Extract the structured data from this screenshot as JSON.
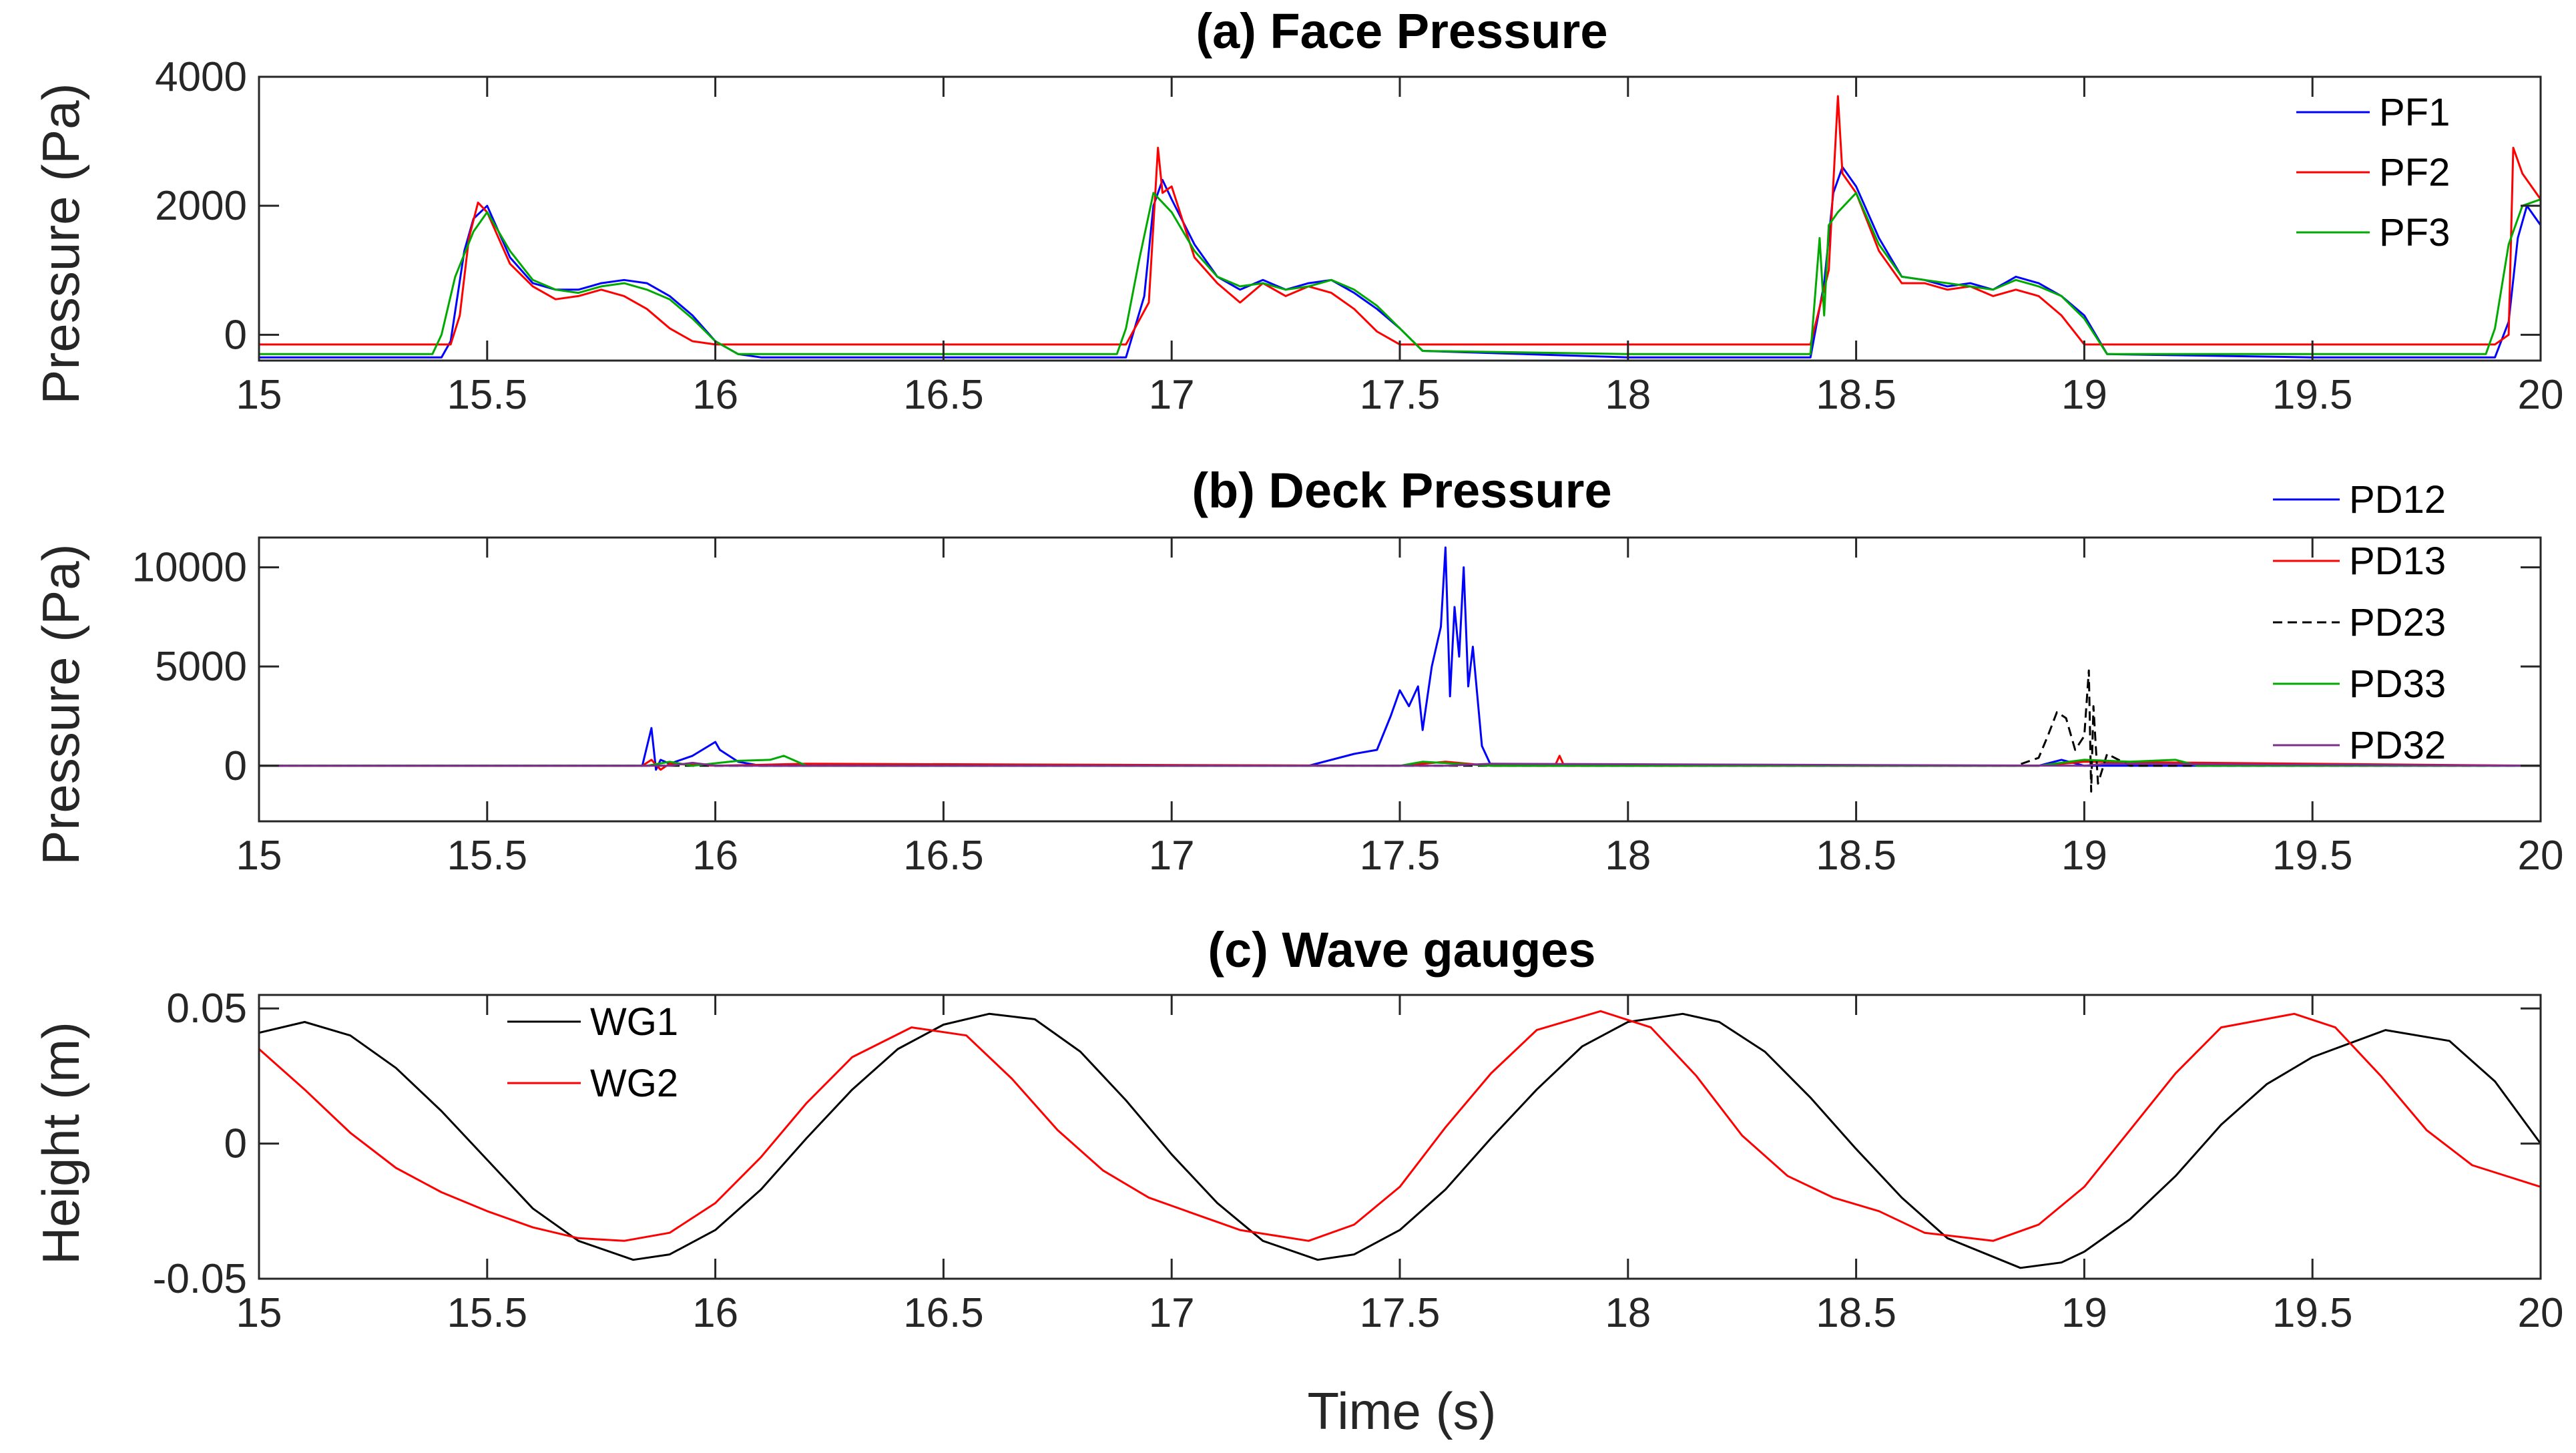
{
  "chart_data": [
    {
      "type": "line",
      "title": "(a) Face Pressure",
      "xlabel": "",
      "ylabel": "Pressure (Pa)",
      "xlim": [
        15,
        20
      ],
      "ylim": [
        -400,
        4000
      ],
      "x_ticks": [
        "15",
        "15.5",
        "16",
        "16.5",
        "17",
        "17.5",
        "18",
        "18.5",
        "19",
        "19.5",
        "20"
      ],
      "y_ticks": [
        "0",
        "2000",
        "4000"
      ],
      "legend_position": "top-right",
      "series": [
        {
          "name": "PF1",
          "color": "#0000ff",
          "dash": "",
          "x": [
            15,
            15.4,
            15.42,
            15.45,
            15.47,
            15.5,
            15.55,
            15.6,
            15.65,
            15.7,
            15.75,
            15.8,
            15.85,
            15.9,
            15.95,
            16.0,
            16.05,
            16.1,
            16.5,
            16.9,
            16.94,
            16.96,
            16.98,
            17.0,
            17.05,
            17.1,
            17.15,
            17.2,
            17.25,
            17.3,
            17.35,
            17.4,
            17.45,
            17.5,
            17.55,
            18.0,
            18.4,
            18.43,
            18.45,
            18.47,
            18.5,
            18.55,
            18.6,
            18.65,
            18.7,
            18.75,
            18.8,
            18.85,
            18.9,
            18.95,
            19.0,
            19.05,
            19.5,
            19.9,
            19.93,
            19.95,
            19.97,
            20.0
          ],
          "y": [
            -350,
            -350,
            -100,
            1300,
            1800,
            2000,
            1200,
            800,
            700,
            700,
            800,
            850,
            800,
            600,
            300,
            -100,
            -300,
            -350,
            -350,
            -350,
            600,
            2000,
            2400,
            2100,
            1400,
            900,
            700,
            850,
            700,
            800,
            850,
            650,
            400,
            100,
            -250,
            -350,
            -350,
            800,
            2200,
            2600,
            2300,
            1500,
            900,
            850,
            750,
            800,
            700,
            900,
            800,
            600,
            300,
            -300,
            -350,
            -350,
            200,
            1500,
            2000,
            1700
          ]
        },
        {
          "name": "PF2",
          "color": "#ff0000",
          "dash": "",
          "x": [
            15,
            15.42,
            15.44,
            15.46,
            15.48,
            15.5,
            15.55,
            15.6,
            15.65,
            15.7,
            15.75,
            15.8,
            15.85,
            15.9,
            15.95,
            16.0,
            16.5,
            16.9,
            16.95,
            16.97,
            16.98,
            17.0,
            17.05,
            17.1,
            17.15,
            17.2,
            17.25,
            17.3,
            17.35,
            17.4,
            17.45,
            17.5,
            18.0,
            18.4,
            18.44,
            18.46,
            18.47,
            18.5,
            18.55,
            18.6,
            18.65,
            18.7,
            18.75,
            18.8,
            18.85,
            18.9,
            18.95,
            19.0,
            19.5,
            19.9,
            19.93,
            19.94,
            19.96,
            20.0
          ],
          "y": [
            -150,
            -150,
            300,
            1500,
            2050,
            1900,
            1100,
            750,
            550,
            600,
            700,
            600,
            400,
            100,
            -100,
            -150,
            -150,
            -150,
            500,
            2900,
            2200,
            2300,
            1200,
            800,
            500,
            800,
            600,
            750,
            650,
            400,
            50,
            -150,
            -150,
            -150,
            1000,
            3700,
            2500,
            2200,
            1300,
            800,
            800,
            700,
            750,
            600,
            700,
            600,
            300,
            -150,
            -150,
            -150,
            0,
            2900,
            2500,
            2100
          ]
        },
        {
          "name": "PF3",
          "color": "#00aa00",
          "dash": "",
          "x": [
            15,
            15.38,
            15.4,
            15.43,
            15.47,
            15.5,
            15.55,
            15.6,
            15.65,
            15.7,
            15.75,
            15.8,
            15.85,
            15.9,
            15.95,
            16.0,
            16.05,
            16.5,
            16.88,
            16.9,
            16.93,
            16.96,
            17.0,
            17.05,
            17.1,
            17.15,
            17.2,
            17.25,
            17.3,
            17.35,
            17.4,
            17.45,
            17.5,
            17.55,
            18.0,
            18.4,
            18.42,
            18.43,
            18.44,
            18.46,
            18.5,
            18.55,
            18.6,
            18.65,
            18.7,
            18.75,
            18.8,
            18.85,
            18.9,
            18.95,
            19.0,
            19.05,
            19.5,
            19.88,
            19.9,
            19.93,
            19.96,
            20.0
          ],
          "y": [
            -300,
            -300,
            0,
            900,
            1600,
            1900,
            1300,
            850,
            700,
            650,
            750,
            800,
            700,
            550,
            250,
            -100,
            -300,
            -300,
            -300,
            100,
            1200,
            2200,
            1900,
            1300,
            900,
            750,
            800,
            700,
            750,
            850,
            700,
            450,
            100,
            -250,
            -300,
            -300,
            1500,
            300,
            1700,
            1900,
            2200,
            1400,
            900,
            850,
            800,
            750,
            700,
            850,
            750,
            600,
            250,
            -300,
            -300,
            -300,
            100,
            1400,
            2000,
            2100
          ]
        }
      ]
    },
    {
      "type": "line",
      "title": "(b) Deck Pressure",
      "xlabel": "",
      "ylabel": "Pressure (Pa)",
      "xlim": [
        15,
        20
      ],
      "ylim": [
        -2800,
        11500
      ],
      "x_ticks": [
        "15",
        "15.5",
        "16",
        "16.5",
        "17",
        "17.5",
        "18",
        "18.5",
        "19",
        "19.5",
        "20"
      ],
      "y_ticks": [
        "0",
        "5000",
        "10000"
      ],
      "legend_position": "top-right",
      "series": [
        {
          "name": "PD12",
          "color": "#0000ff",
          "dash": "",
          "x": [
            15,
            15.84,
            15.86,
            15.87,
            15.88,
            15.9,
            15.95,
            16.0,
            16.01,
            16.05,
            16.1,
            17.3,
            17.4,
            17.45,
            17.48,
            17.5,
            17.52,
            17.54,
            17.55,
            17.57,
            17.59,
            17.6,
            17.61,
            17.62,
            17.63,
            17.64,
            17.65,
            17.66,
            17.68,
            17.7,
            18.9,
            18.95,
            19.0,
            20
          ],
          "y": [
            0,
            0,
            1900,
            -200,
            300,
            100,
            500,
            1200,
            800,
            200,
            0,
            0,
            600,
            800,
            2500,
            3800,
            3000,
            4000,
            1800,
            5000,
            7000,
            11000,
            3500,
            8000,
            5500,
            10000,
            4000,
            6000,
            1000,
            0,
            0,
            300,
            0,
            0
          ]
        },
        {
          "name": "PD13",
          "color": "#ff0000",
          "dash": "",
          "x": [
            15,
            15.84,
            15.86,
            15.88,
            15.9,
            16.0,
            16.2,
            17.5,
            17.6,
            17.7,
            17.84,
            17.85,
            17.86,
            18.9,
            19.0,
            20
          ],
          "y": [
            0,
            0,
            300,
            -200,
            100,
            0,
            100,
            0,
            200,
            0,
            0,
            500,
            0,
            0,
            200,
            0
          ]
        },
        {
          "name": "PD23",
          "color": "#000000",
          "dash": "14,8",
          "x": [
            15,
            18.85,
            18.9,
            18.92,
            18.94,
            18.96,
            18.98,
            19.0,
            19.01,
            19.015,
            19.02,
            19.03,
            19.05,
            19.1,
            20
          ],
          "y": [
            0,
            0,
            400,
            1500,
            2700,
            2400,
            800,
            1500,
            4800,
            -1300,
            3000,
            -900,
            600,
            0,
            0
          ]
        },
        {
          "name": "PD33",
          "color": "#00aa00",
          "dash": "",
          "x": [
            15,
            15.85,
            15.9,
            15.95,
            16.05,
            16.12,
            16.15,
            16.2,
            17.5,
            17.55,
            17.7,
            18.9,
            19.0,
            19.1,
            19.2,
            19.25,
            20
          ],
          "y": [
            0,
            0,
            200,
            0,
            250,
            300,
            500,
            0,
            0,
            200,
            0,
            0,
            300,
            200,
            300,
            0,
            0
          ]
        },
        {
          "name": "PD32",
          "color": "#7e2f8e",
          "dash": "",
          "x": [
            15,
            15.9,
            15.95,
            16.0,
            16.1,
            17.6,
            17.7,
            19.0,
            19.05,
            20
          ],
          "y": [
            0,
            0,
            150,
            0,
            0,
            0,
            100,
            0,
            100,
            0
          ]
        }
      ]
    },
    {
      "type": "line",
      "title": "(c) Wave gauges",
      "xlabel": "Time (s)",
      "ylabel": "Height (m)",
      "xlim": [
        15,
        20
      ],
      "ylim": [
        -0.05,
        0.055
      ],
      "x_ticks": [
        "15",
        "15.5",
        "16",
        "16.5",
        "17",
        "17.5",
        "18",
        "18.5",
        "19",
        "19.5",
        "20"
      ],
      "y_ticks": [
        "-0.05",
        "0",
        "0.05"
      ],
      "legend_position": "top-left",
      "series": [
        {
          "name": "WG1",
          "color": "#000000",
          "dash": "",
          "x": [
            15.0,
            15.1,
            15.2,
            15.3,
            15.4,
            15.5,
            15.6,
            15.7,
            15.82,
            15.9,
            16.0,
            16.1,
            16.2,
            16.3,
            16.4,
            16.5,
            16.6,
            16.7,
            16.8,
            16.9,
            17.0,
            17.1,
            17.2,
            17.32,
            17.4,
            17.5,
            17.6,
            17.7,
            17.8,
            17.9,
            18.0,
            18.12,
            18.2,
            18.3,
            18.4,
            18.5,
            18.6,
            18.7,
            18.86,
            18.95,
            19.0,
            19.1,
            19.2,
            19.3,
            19.4,
            19.5,
            19.66,
            19.8,
            19.9,
            20.0
          ],
          "y": [
            0.041,
            0.045,
            0.04,
            0.028,
            0.012,
            -0.006,
            -0.024,
            -0.036,
            -0.043,
            -0.041,
            -0.032,
            -0.017,
            0.002,
            0.02,
            0.035,
            0.044,
            0.048,
            0.046,
            0.034,
            0.016,
            -0.004,
            -0.022,
            -0.036,
            -0.043,
            -0.041,
            -0.032,
            -0.017,
            0.002,
            0.02,
            0.036,
            0.045,
            0.048,
            0.045,
            0.034,
            0.017,
            -0.002,
            -0.02,
            -0.035,
            -0.046,
            -0.044,
            -0.04,
            -0.028,
            -0.012,
            0.007,
            0.022,
            0.032,
            0.042,
            0.038,
            0.023,
            0.0
          ]
        },
        {
          "name": "WG2",
          "color": "#ff0000",
          "dash": "",
          "x": [
            15.0,
            15.1,
            15.2,
            15.3,
            15.4,
            15.5,
            15.6,
            15.7,
            15.8,
            15.9,
            16.0,
            16.1,
            16.2,
            16.3,
            16.43,
            16.55,
            16.65,
            16.75,
            16.85,
            16.95,
            17.05,
            17.15,
            17.3,
            17.4,
            17.5,
            17.6,
            17.7,
            17.8,
            17.94,
            18.05,
            18.15,
            18.25,
            18.35,
            18.45,
            18.55,
            18.65,
            18.8,
            18.9,
            19.0,
            19.1,
            19.2,
            19.3,
            19.46,
            19.55,
            19.65,
            19.75,
            19.85,
            20.0
          ],
          "y": [
            0.035,
            0.02,
            0.004,
            -0.009,
            -0.018,
            -0.025,
            -0.031,
            -0.035,
            -0.036,
            -0.033,
            -0.022,
            -0.005,
            0.015,
            0.032,
            0.043,
            0.04,
            0.024,
            0.005,
            -0.01,
            -0.02,
            -0.026,
            -0.032,
            -0.036,
            -0.03,
            -0.016,
            0.006,
            0.026,
            0.042,
            0.049,
            0.043,
            0.025,
            0.003,
            -0.012,
            -0.02,
            -0.025,
            -0.033,
            -0.036,
            -0.03,
            -0.016,
            0.005,
            0.026,
            0.043,
            0.048,
            0.043,
            0.025,
            0.005,
            -0.008,
            -0.016
          ]
        }
      ]
    }
  ]
}
